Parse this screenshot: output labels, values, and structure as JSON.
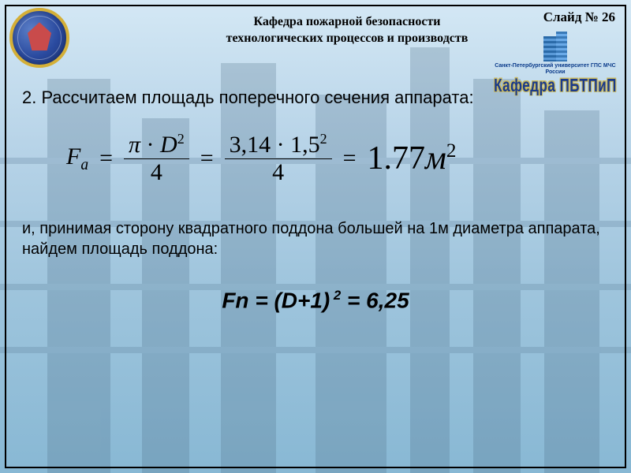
{
  "slide_number_label": "Слайд № 26",
  "header": {
    "line1": "Кафедра пожарной безопасности",
    "line2": "технологических процессов и производств"
  },
  "right_logo": {
    "small_caption": "Санкт-Петербургский университет ГПС МЧС России",
    "big_caption": "Кафедра ПБТПиП"
  },
  "content": {
    "para1": "2. Рассчитаем площадь поперечного сечения аппарата:",
    "formula1": {
      "lhs_var": "F",
      "lhs_sub": "a",
      "eq": "=",
      "frac1_num_pi": "π",
      "frac1_num_dot": "·",
      "frac1_num_D": "D",
      "frac1_num_exp": "2",
      "frac1_den": "4",
      "frac2_num_a": "3,14",
      "frac2_num_dot": "·",
      "frac2_num_b": "1,5",
      "frac2_num_exp": "2",
      "frac2_den": "4",
      "result_val": "1.77",
      "result_unit": "м",
      "result_exp": "2"
    },
    "para2": "и, принимая сторону квадратного поддона большей на 1м диаметра аппарата, найдем площадь поддона:",
    "formula2": {
      "text_lhs": "Fn = (D+1)",
      "exp": " 2",
      "text_rhs": " = 6,25"
    }
  },
  "colors": {
    "emblem_outer": "#d4af37",
    "emblem_fill": "#2a4a9f",
    "logo_text": "#1a3a8a"
  }
}
